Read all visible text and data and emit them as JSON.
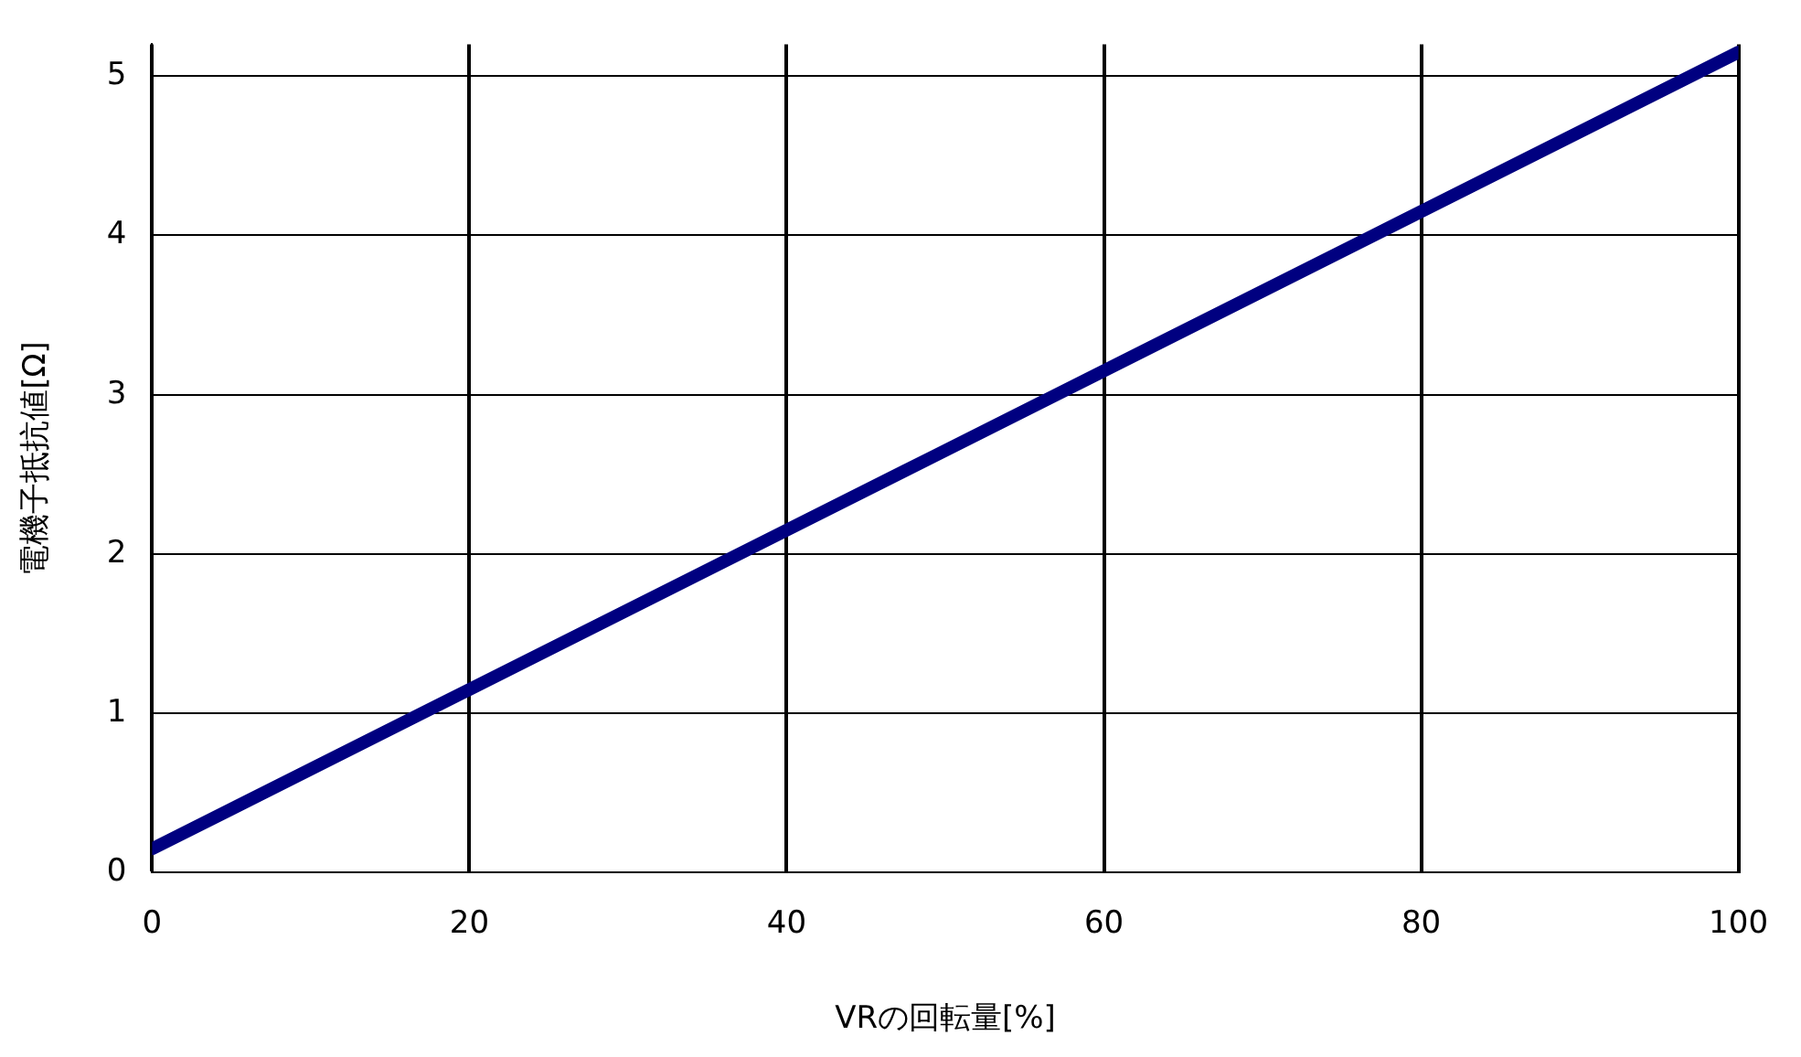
{
  "chart_data": {
    "type": "line",
    "xlabel": "VRの回転量[%]",
    "ylabel": "電機子抵抗値[Ω]",
    "x": [
      0,
      100
    ],
    "series": [
      {
        "color": "#000080",
        "values": [
          0.15,
          5.15
        ]
      }
    ],
    "xlim": [
      0,
      100
    ],
    "xticks": [
      0,
      20,
      40,
      60,
      80,
      100
    ],
    "ylim": [
      0,
      5.2
    ],
    "yticks": [
      0,
      1,
      2,
      3,
      4,
      5
    ],
    "grid": true,
    "legend": false,
    "marker": "none",
    "line_style": "solid"
  }
}
